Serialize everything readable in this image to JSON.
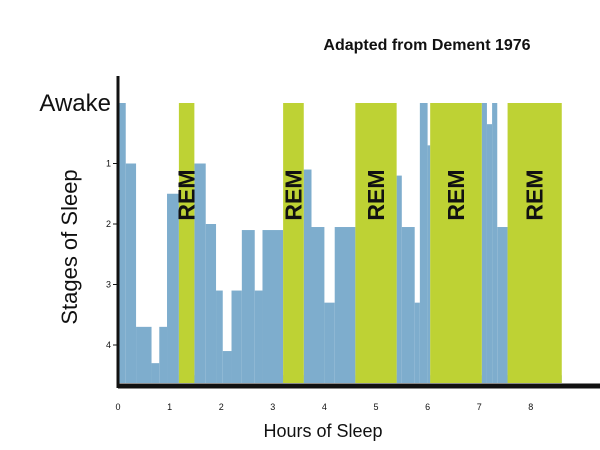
{
  "chart_data": {
    "type": "area",
    "title": "Adapted from  Dement 1976",
    "xlabel": "Hours of Sleep",
    "ylabel": "Stages of Sleep",
    "xlim": [
      0,
      8.9
    ],
    "ylim": [
      0,
      4.5
    ],
    "y_inverted": true,
    "x_ticks": [
      "0",
      "1",
      "2",
      "3",
      "4",
      "5",
      "6",
      "7",
      "8"
    ],
    "y_ticks": [
      {
        "value": 0,
        "label": "Awake"
      },
      {
        "value": 1,
        "label": "1"
      },
      {
        "value": 2,
        "label": "2"
      },
      {
        "value": 3,
        "label": "3"
      },
      {
        "value": 4,
        "label": "4"
      }
    ],
    "series": [
      {
        "color": "#7eadcd",
        "points": [
          [
            0.0,
            0.0
          ],
          [
            0.15,
            0.0
          ],
          [
            0.15,
            1.0
          ],
          [
            0.35,
            1.0
          ],
          [
            0.35,
            3.7
          ],
          [
            0.65,
            3.7
          ],
          [
            0.65,
            4.3
          ],
          [
            0.8,
            4.3
          ],
          [
            0.8,
            3.7
          ],
          [
            0.95,
            3.7
          ],
          [
            0.95,
            1.5
          ],
          [
            1.18,
            1.5
          ],
          [
            1.18,
            4.5
          ],
          [
            1.48,
            4.5
          ],
          [
            1.48,
            1.0
          ],
          [
            1.7,
            1.0
          ],
          [
            1.7,
            2.0
          ],
          [
            1.9,
            2.0
          ],
          [
            1.9,
            3.1
          ],
          [
            2.03,
            3.1
          ],
          [
            2.03,
            4.1
          ],
          [
            2.2,
            4.1
          ],
          [
            2.2,
            3.1
          ],
          [
            2.4,
            3.1
          ],
          [
            2.4,
            2.1
          ],
          [
            2.65,
            2.1
          ],
          [
            2.65,
            3.1
          ],
          [
            2.8,
            3.1
          ],
          [
            2.8,
            2.1
          ],
          [
            3.2,
            2.1
          ],
          [
            3.2,
            4.5
          ],
          [
            3.6,
            4.5
          ],
          [
            3.6,
            1.1
          ],
          [
            3.75,
            1.1
          ],
          [
            3.75,
            2.05
          ],
          [
            4.0,
            2.05
          ],
          [
            4.0,
            3.3
          ],
          [
            4.2,
            3.3
          ],
          [
            4.2,
            2.05
          ],
          [
            4.6,
            2.05
          ],
          [
            4.6,
            4.5
          ],
          [
            5.4,
            4.5
          ],
          [
            5.4,
            1.2
          ],
          [
            5.5,
            1.2
          ],
          [
            5.5,
            2.05
          ],
          [
            5.75,
            2.05
          ],
          [
            5.75,
            3.3
          ],
          [
            5.85,
            3.3
          ],
          [
            5.85,
            0.0
          ],
          [
            6.0,
            0.0
          ],
          [
            6.0,
            0.7
          ],
          [
            6.05,
            0.7
          ],
          [
            6.05,
            4.5
          ],
          [
            7.05,
            4.5
          ],
          [
            7.05,
            0.0
          ],
          [
            7.15,
            0.0
          ],
          [
            7.15,
            0.35
          ],
          [
            7.25,
            0.35
          ],
          [
            7.25,
            0.0
          ],
          [
            7.35,
            0.0
          ],
          [
            7.35,
            2.05
          ],
          [
            7.55,
            2.05
          ],
          [
            7.55,
            4.5
          ],
          [
            8.6,
            4.5
          ]
        ]
      }
    ],
    "rem_periods": [
      {
        "label": "REM",
        "start": 1.18,
        "end": 1.48,
        "top": 0.0
      },
      {
        "label": "REM",
        "start": 3.2,
        "end": 3.6,
        "top": 0.0
      },
      {
        "label": "REM",
        "start": 4.6,
        "end": 5.4,
        "top": 0.0
      },
      {
        "label": "REM",
        "start": 6.05,
        "end": 7.05,
        "top": 0.0
      },
      {
        "label": "REM",
        "start": 7.55,
        "end": 8.6,
        "top": 0.0
      }
    ],
    "colors": {
      "sleep_stage": "#7eadcd",
      "rem": "#bed234",
      "axis": "#111111",
      "text": "#111111"
    },
    "grid": false
  }
}
